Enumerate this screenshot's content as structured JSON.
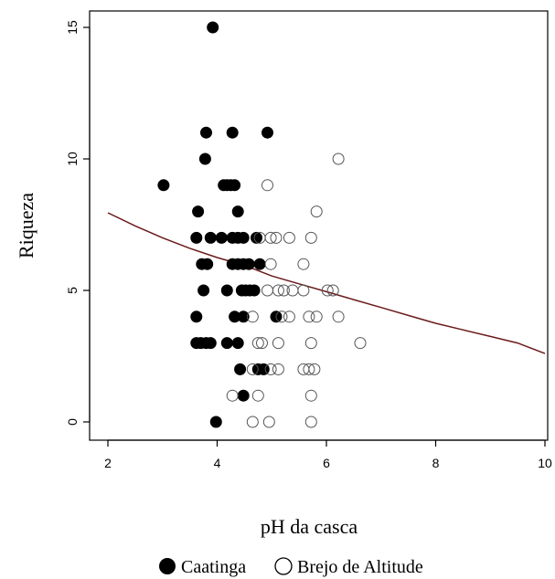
{
  "chart_data": {
    "type": "scatter",
    "title": "",
    "xlabel": "pH da casca",
    "ylabel": "Riqueza",
    "xlim": [
      2,
      10
    ],
    "ylim": [
      0,
      15
    ],
    "xticks": [
      2,
      4,
      6,
      8,
      10
    ],
    "yticks": [
      0,
      5,
      10,
      15
    ],
    "grid": false,
    "legend_position": "bottom",
    "colors": {
      "caatinga": "#000000",
      "brejo": "#555555",
      "curve": "#6b1a1a"
    },
    "series": [
      {
        "name": "Caatinga",
        "marker": "filled-circle",
        "points": [
          [
            3.92,
            15
          ],
          [
            3.8,
            11
          ],
          [
            4.28,
            11
          ],
          [
            4.92,
            11
          ],
          [
            3.78,
            10
          ],
          [
            3.02,
            9
          ],
          [
            4.12,
            9
          ],
          [
            4.18,
            9
          ],
          [
            4.25,
            9
          ],
          [
            4.32,
            9
          ],
          [
            3.65,
            8
          ],
          [
            4.38,
            8
          ],
          [
            3.62,
            7
          ],
          [
            3.88,
            7
          ],
          [
            4.08,
            7
          ],
          [
            4.28,
            7
          ],
          [
            4.38,
            7
          ],
          [
            4.48,
            7
          ],
          [
            4.72,
            7
          ],
          [
            3.72,
            6
          ],
          [
            3.82,
            6
          ],
          [
            4.28,
            6
          ],
          [
            4.38,
            6
          ],
          [
            4.48,
            6
          ],
          [
            4.58,
            6
          ],
          [
            4.78,
            6
          ],
          [
            3.75,
            5
          ],
          [
            4.18,
            5
          ],
          [
            4.45,
            5
          ],
          [
            4.52,
            5
          ],
          [
            4.6,
            5
          ],
          [
            4.68,
            5
          ],
          [
            3.62,
            4
          ],
          [
            4.32,
            4
          ],
          [
            4.48,
            4
          ],
          [
            5.08,
            4
          ],
          [
            3.62,
            3
          ],
          [
            3.7,
            3
          ],
          [
            3.8,
            3
          ],
          [
            3.88,
            3
          ],
          [
            4.18,
            3
          ],
          [
            4.38,
            3
          ],
          [
            4.42,
            2
          ],
          [
            4.75,
            2
          ],
          [
            4.85,
            2
          ],
          [
            4.48,
            1
          ],
          [
            3.98,
            0
          ]
        ]
      },
      {
        "name": "Brejo de Altitude",
        "marker": "open-circle",
        "points": [
          [
            6.22,
            10
          ],
          [
            4.92,
            9
          ],
          [
            5.82,
            8
          ],
          [
            4.78,
            7
          ],
          [
            4.98,
            7
          ],
          [
            5.08,
            7
          ],
          [
            5.32,
            7
          ],
          [
            5.72,
            7
          ],
          [
            4.98,
            6
          ],
          [
            5.58,
            6
          ],
          [
            4.92,
            5
          ],
          [
            5.12,
            5
          ],
          [
            5.22,
            5
          ],
          [
            5.38,
            5
          ],
          [
            5.58,
            5
          ],
          [
            6.02,
            5
          ],
          [
            6.12,
            5
          ],
          [
            4.65,
            4
          ],
          [
            5.18,
            4
          ],
          [
            5.32,
            4
          ],
          [
            5.68,
            4
          ],
          [
            5.82,
            4
          ],
          [
            6.22,
            4
          ],
          [
            4.75,
            3
          ],
          [
            4.82,
            3
          ],
          [
            5.12,
            3
          ],
          [
            5.72,
            3
          ],
          [
            6.62,
            3
          ],
          [
            4.65,
            2
          ],
          [
            4.98,
            2
          ],
          [
            5.12,
            2
          ],
          [
            5.58,
            2
          ],
          [
            5.68,
            2
          ],
          [
            5.78,
            2
          ],
          [
            4.28,
            1
          ],
          [
            4.75,
            1
          ],
          [
            5.72,
            1
          ],
          [
            4.65,
            0
          ],
          [
            4.95,
            0
          ],
          [
            5.72,
            0
          ]
        ]
      }
    ],
    "fitted_curve": {
      "points": [
        [
          2.0,
          7.95
        ],
        [
          2.5,
          7.45
        ],
        [
          3.0,
          7.0
        ],
        [
          3.5,
          6.6
        ],
        [
          4.0,
          6.25
        ],
        [
          4.5,
          5.95
        ],
        [
          5.0,
          5.55
        ],
        [
          5.5,
          5.25
        ],
        [
          6.0,
          4.95
        ],
        [
          6.5,
          4.65
        ],
        [
          7.0,
          4.35
        ],
        [
          7.5,
          4.05
        ],
        [
          8.0,
          3.75
        ],
        [
          8.5,
          3.5
        ],
        [
          9.0,
          3.25
        ],
        [
          9.5,
          3.0
        ],
        [
          10.0,
          2.6
        ]
      ]
    }
  },
  "legend": {
    "items": [
      "Caatinga",
      "Brejo de Altitude"
    ]
  }
}
